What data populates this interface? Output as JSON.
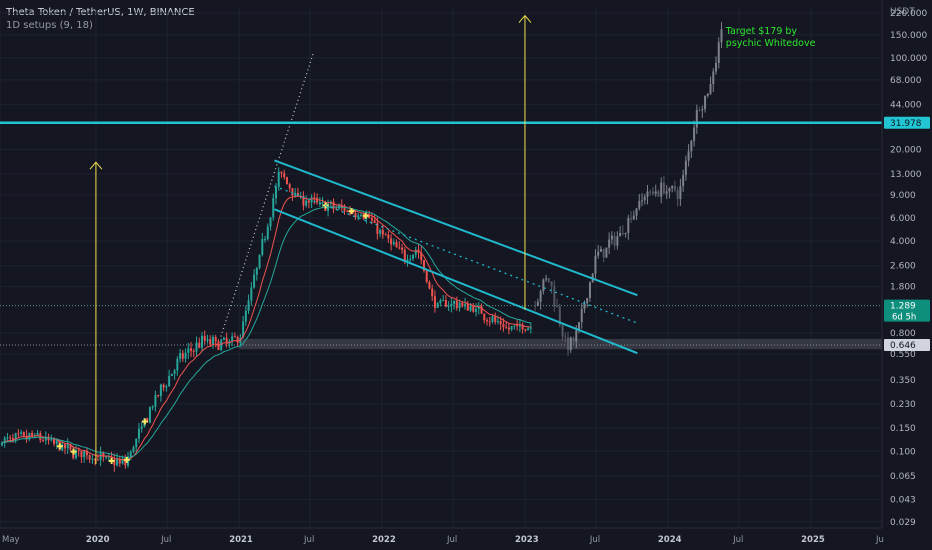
{
  "header": {
    "title": "Theta Token / TetherUS, 1W, BINANCE",
    "indicator": "1D setups (9, 18)"
  },
  "colors": {
    "background": "#141722",
    "up": "#26a69a",
    "down": "#ef5350",
    "projection": "#8a8d96",
    "channel": "#1fb8cd",
    "horizontal": "#22c5d3",
    "arrow": "#f2e14c",
    "annotation": "#2ee62e",
    "ema_fast": "#ef5350",
    "ema_slow": "#26a69a",
    "support_zone": "#5d606b"
  },
  "chart_data": {
    "type": "candlestick",
    "symbol": "Theta Token / TetherUS",
    "interval": "1W",
    "exchange": "BINANCE",
    "y_scale": "log",
    "y_unit": "USDT",
    "ylim": [
      0.026,
      240
    ],
    "x_range": [
      "2019-05-01",
      "2025-07-01"
    ],
    "x_ticks": [
      {
        "date": "2019-05-01",
        "label": "May"
      },
      {
        "date": "2020-01-01",
        "label": "2020"
      },
      {
        "date": "2020-07-01",
        "label": "Jul"
      },
      {
        "date": "2021-01-01",
        "label": "2021"
      },
      {
        "date": "2021-07-01",
        "label": "Jul"
      },
      {
        "date": "2022-01-01",
        "label": "2022"
      },
      {
        "date": "2022-07-01",
        "label": "Jul"
      },
      {
        "date": "2023-01-01",
        "label": "2023"
      },
      {
        "date": "2023-07-01",
        "label": "Jul"
      },
      {
        "date": "2024-01-01",
        "label": "2024"
      },
      {
        "date": "2024-07-01",
        "label": "Jul"
      },
      {
        "date": "2025-01-01",
        "label": "2025"
      },
      {
        "date": "2025-07-01",
        "label": "Ju"
      }
    ],
    "y_ticks": [
      {
        "value": 220,
        "label": "220.000"
      },
      {
        "value": 150,
        "label": "150.000"
      },
      {
        "value": 100,
        "label": "100.000"
      },
      {
        "value": 68,
        "label": "68.000"
      },
      {
        "value": 44,
        "label": "44.000"
      },
      {
        "value": 20,
        "label": "20.000"
      },
      {
        "value": 13,
        "label": "13.000"
      },
      {
        "value": 9,
        "label": "9.000"
      },
      {
        "value": 6,
        "label": "6.000"
      },
      {
        "value": 4,
        "label": "4.000"
      },
      {
        "value": 2.6,
        "label": "2.600"
      },
      {
        "value": 1.8,
        "label": "1.800"
      },
      {
        "value": 0.8,
        "label": "0.800"
      },
      {
        "value": 0.55,
        "label": "0.550"
      },
      {
        "value": 0.35,
        "label": "0.350"
      },
      {
        "value": 0.23,
        "label": "0.230"
      },
      {
        "value": 0.15,
        "label": "0.150"
      },
      {
        "value": 0.1,
        "label": "0.100"
      },
      {
        "value": 0.065,
        "label": "0.065"
      },
      {
        "value": 0.043,
        "label": "0.043"
      },
      {
        "value": 0.029,
        "label": "0.029"
      }
    ],
    "price_labels": [
      {
        "value": 31.978,
        "label": "31.978",
        "kind": "horizontal"
      },
      {
        "value": 1.289,
        "label": "1.289",
        "sublabel": "6d 5h",
        "kind": "last"
      },
      {
        "value": 0.646,
        "label": "0.646",
        "kind": "support"
      }
    ],
    "key_points": {
      "dates": [
        "2019-05-01",
        "2019-08-01",
        "2019-11-01",
        "2020-01-01",
        "2020-03-15",
        "2020-06-01",
        "2020-08-01",
        "2020-10-01",
        "2020-11-15",
        "2021-01-01",
        "2021-02-15",
        "2021-04-15",
        "2021-06-01",
        "2021-09-01",
        "2021-11-15",
        "2022-01-01",
        "2022-03-01",
        "2022-04-01",
        "2022-05-15",
        "2022-07-01",
        "2022-09-01",
        "2022-11-15",
        "2023-01-01"
      ],
      "prices": [
        0.12,
        0.13,
        0.1,
        0.09,
        0.08,
        0.25,
        0.5,
        0.7,
        0.66,
        0.72,
        2.5,
        13.5,
        8.5,
        7.2,
        6.5,
        4.5,
        3,
        3.5,
        1.3,
        1.35,
        1.2,
        0.85,
        0.9
      ]
    },
    "projection_points": {
      "dates": [
        "2023-01-01",
        "2023-03-01",
        "2023-04-20",
        "2023-05-15",
        "2023-07-01",
        "2023-09-01",
        "2023-11-01",
        "2023-12-15",
        "2024-02-01",
        "2024-03-15",
        "2024-04-15",
        "2024-05-20"
      ],
      "prices": [
        1.0,
        2.2,
        0.6,
        0.8,
        3.0,
        4.5,
        9,
        10,
        9.5,
        40,
        55,
        180
      ]
    },
    "annotations": [
      {
        "text": "Target $179 by",
        "date": "2024-05-28",
        "price": 160
      },
      {
        "text": "psychic Whitedove",
        "date": "2024-05-28",
        "price": 130
      }
    ],
    "horizontal_line": {
      "price": 31.978
    },
    "support_zone": {
      "from": 0.6,
      "to": 0.72,
      "start_date": "2021-01-01"
    },
    "channel": {
      "upper": {
        "start": {
          "date": "2021-04-01",
          "price": 16.5
        },
        "end": {
          "date": "2023-10-15",
          "price": 1.55
        }
      },
      "mid": {
        "start": {
          "date": "2021-04-01",
          "price": 10.5
        },
        "end": {
          "date": "2023-10-15",
          "price": 0.95
        }
      },
      "lower": {
        "start": {
          "date": "2021-04-01",
          "price": 7.0
        },
        "end": {
          "date": "2023-10-15",
          "price": 0.56
        }
      }
    },
    "dotted_trend": {
      "start": {
        "date": "2020-11-15",
        "price": 0.75
      },
      "end": {
        "date": "2021-07-10",
        "price": 110
      }
    },
    "arrows": [
      {
        "date": "2020-01-01",
        "from": 0.08,
        "to": 16
      },
      {
        "date": "2023-01-01",
        "from": 1.2,
        "to": 210
      }
    ]
  }
}
